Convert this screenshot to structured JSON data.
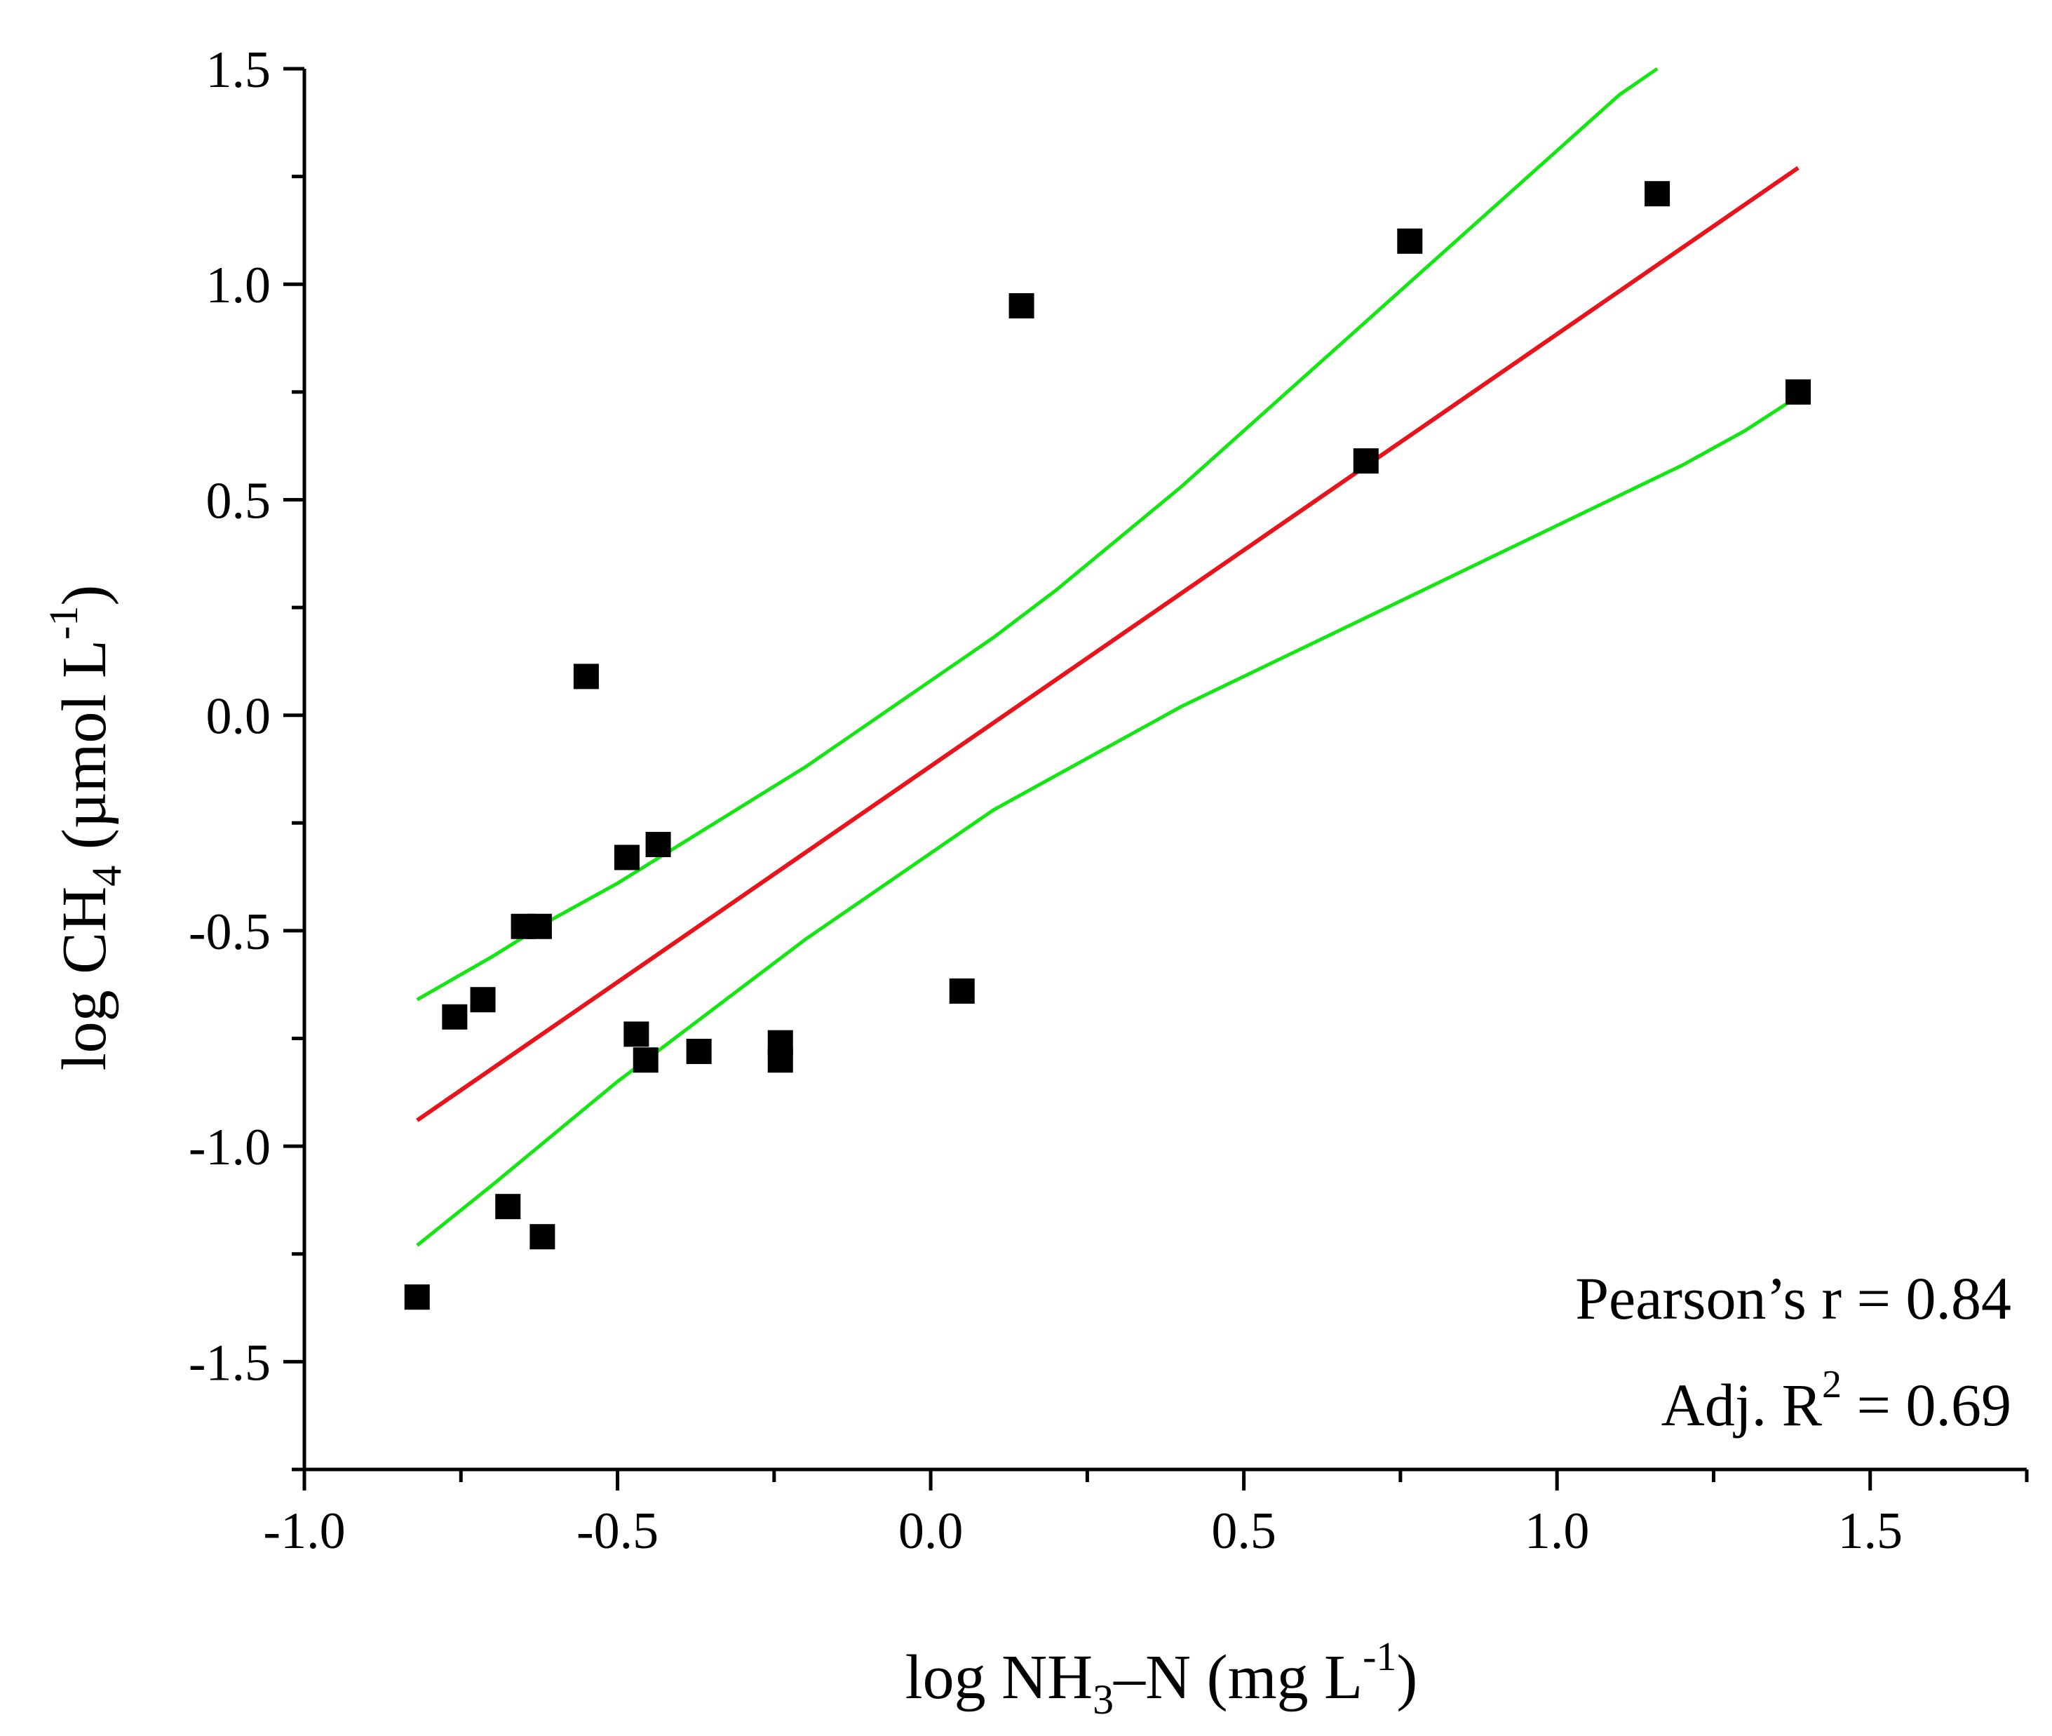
{
  "chart_data": {
    "type": "scatter",
    "title": "",
    "xlabel": {
      "prefix": "log NH",
      "sub": "3",
      "mid": "–N (mg L",
      "sup": "-1",
      "suffix": ")"
    },
    "ylabel": {
      "prefix": "log CH",
      "sub": "4",
      "mid": " (µmol L",
      "sup": "-1",
      "suffix": ")"
    },
    "xlim": [
      -1.0,
      1.75
    ],
    "ylim": [
      -1.75,
      1.5
    ],
    "x_major_ticks": [
      -1.0,
      -0.5,
      0.0,
      0.5,
      1.0,
      1.5
    ],
    "x_minor_ticks": [
      -0.75,
      -0.25,
      0.25,
      0.75,
      1.25,
      1.75
    ],
    "x_tick_labels": [
      "-1.0",
      "-0.5",
      "0.0",
      "0.5",
      "1.0",
      "1.5"
    ],
    "y_major_ticks": [
      -1.5,
      -1.0,
      -0.5,
      0.0,
      0.5,
      1.0,
      1.5
    ],
    "y_minor_ticks": [
      -1.75,
      -1.25,
      -0.75,
      -0.25,
      0.25,
      0.75,
      1.25
    ],
    "y_tick_labels": [
      "-1.5",
      "-1.0",
      "-0.5",
      "0.0",
      "0.5",
      "1.0",
      "1.5"
    ],
    "grid": false,
    "points": [
      {
        "x": -0.82,
        "y": -1.35
      },
      {
        "x": -0.76,
        "y": -0.7
      },
      {
        "x": -0.715,
        "y": -0.66
      },
      {
        "x": -0.675,
        "y": -1.14
      },
      {
        "x": -0.65,
        "y": -0.49
      },
      {
        "x": -0.625,
        "y": -0.49
      },
      {
        "x": -0.62,
        "y": -1.21
      },
      {
        "x": -0.55,
        "y": 0.09
      },
      {
        "x": -0.485,
        "y": -0.33
      },
      {
        "x": -0.47,
        "y": -0.74
      },
      {
        "x": -0.455,
        "y": -0.8
      },
      {
        "x": -0.435,
        "y": -0.3
      },
      {
        "x": -0.37,
        "y": -0.78
      },
      {
        "x": -0.24,
        "y": -0.76
      },
      {
        "x": -0.24,
        "y": -0.8
      },
      {
        "x": 0.05,
        "y": -0.64
      },
      {
        "x": 0.145,
        "y": 0.95
      },
      {
        "x": 0.695,
        "y": 0.59
      },
      {
        "x": 0.765,
        "y": 1.1
      },
      {
        "x": 1.16,
        "y": 1.21
      },
      {
        "x": 1.385,
        "y": 0.75
      }
    ],
    "series": [
      {
        "name": "fit",
        "color": "#e8141c",
        "x": [
          -0.82,
          1.385
        ],
        "y": [
          -0.94,
          1.27
        ]
      },
      {
        "name": "upper-confidence",
        "color": "#14e614",
        "x": [
          -0.82,
          -0.7,
          -0.6,
          -0.5,
          -0.4,
          -0.3,
          -0.2,
          -0.1,
          0.0,
          0.1,
          0.2,
          0.3,
          0.4,
          0.5,
          0.6,
          0.7,
          0.8,
          0.9,
          1.0,
          1.1,
          1.16
        ],
        "y": [
          -0.66,
          -0.56,
          -0.47,
          -0.39,
          -0.3,
          -0.21,
          -0.12,
          -0.02,
          0.08,
          0.18,
          0.29,
          0.41,
          0.53,
          0.66,
          0.79,
          0.92,
          1.05,
          1.18,
          1.31,
          1.44,
          1.5
        ]
      },
      {
        "name": "lower-confidence",
        "color": "#14e614",
        "x": [
          -0.82,
          -0.7,
          -0.6,
          -0.5,
          -0.4,
          -0.3,
          -0.2,
          -0.1,
          0.0,
          0.1,
          0.2,
          0.3,
          0.4,
          0.5,
          0.6,
          0.7,
          0.8,
          0.9,
          1.0,
          1.1,
          1.2,
          1.3,
          1.385
        ],
        "y": [
          -1.23,
          -1.09,
          -0.97,
          -0.85,
          -0.74,
          -0.63,
          -0.52,
          -0.42,
          -0.32,
          -0.22,
          -0.14,
          -0.06,
          0.02,
          0.09,
          0.16,
          0.23,
          0.3,
          0.37,
          0.44,
          0.51,
          0.58,
          0.66,
          0.74
        ]
      }
    ],
    "annotations": {
      "pearson": "Pearson’s r = 0.84",
      "adj_r2": {
        "prefix": "Adj. R",
        "sup": "2",
        "suffix": " = 0.69"
      }
    }
  }
}
